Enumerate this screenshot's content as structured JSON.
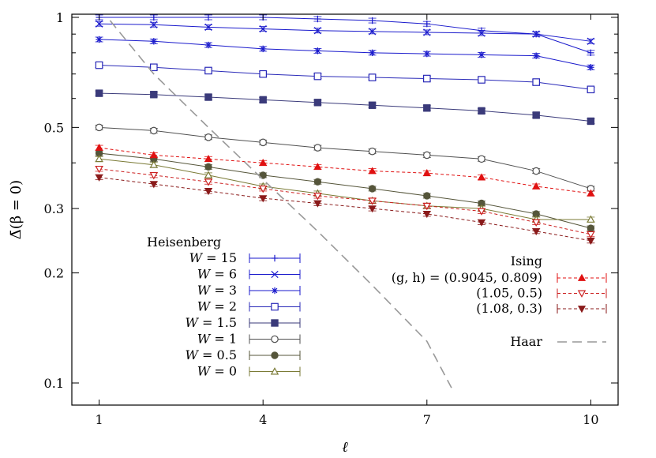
{
  "chart_data": {
    "type": "line",
    "title": "",
    "xlabel": "ℓ",
    "ylabel": "Δ̄(β = 0)",
    "x_scale": "linear",
    "y_scale": "log",
    "xlim": [
      0.5,
      10.5
    ],
    "ylim": [
      0.087,
      1.02
    ],
    "x_ticks": [
      1,
      4,
      7,
      10
    ],
    "y_ticks": [
      0.1,
      0.2,
      0.3,
      0.5,
      1
    ],
    "y_tick_labels": [
      "0.1",
      "0.2",
      "0.3",
      "0.5",
      "1"
    ],
    "grid": false,
    "legend_groups": [
      {
        "title": "Heisenberg",
        "placement": "bottom-left"
      },
      {
        "title": "Ising",
        "placement": "bottom-right"
      }
    ],
    "series": [
      {
        "name": "W = 15",
        "label_lhs": "W",
        "label_rhs": "15",
        "color": "#1a1acc",
        "marker": "plus",
        "dash": false,
        "x": [
          1,
          2,
          3,
          4,
          5,
          6,
          7,
          8,
          9,
          10
        ],
        "y": [
          1.0,
          1.0,
          1.0,
          1.0,
          0.99,
          0.98,
          0.96,
          0.92,
          0.9,
          0.8
        ]
      },
      {
        "name": "W = 6",
        "label_lhs": "W",
        "label_rhs": "6",
        "color": "#1a1acc",
        "marker": "cross",
        "dash": false,
        "x": [
          1,
          2,
          3,
          4,
          5,
          6,
          7,
          8,
          9,
          10
        ],
        "y": [
          0.96,
          0.955,
          0.94,
          0.93,
          0.92,
          0.915,
          0.91,
          0.905,
          0.9,
          0.86
        ]
      },
      {
        "name": "W = 3",
        "label_lhs": "W",
        "label_rhs": "3",
        "color": "#1a1acc",
        "marker": "star",
        "dash": false,
        "x": [
          1,
          2,
          3,
          4,
          5,
          6,
          7,
          8,
          9,
          10
        ],
        "y": [
          0.87,
          0.86,
          0.84,
          0.82,
          0.81,
          0.8,
          0.795,
          0.79,
          0.785,
          0.73
        ]
      },
      {
        "name": "W = 2",
        "label_lhs": "W",
        "label_rhs": "2",
        "color": "#2a2ab8",
        "marker": "square-open",
        "dash": false,
        "x": [
          1,
          2,
          3,
          4,
          5,
          6,
          7,
          8,
          9,
          10
        ],
        "y": [
          0.74,
          0.73,
          0.715,
          0.7,
          0.69,
          0.685,
          0.68,
          0.675,
          0.665,
          0.635
        ]
      },
      {
        "name": "W = 1.5",
        "label_lhs": "W",
        "label_rhs": "1.5",
        "color": "#3a3a7a",
        "marker": "square-filled",
        "dash": false,
        "x": [
          1,
          2,
          3,
          4,
          5,
          6,
          7,
          8,
          9,
          10
        ],
        "y": [
          0.62,
          0.615,
          0.605,
          0.595,
          0.585,
          0.575,
          0.565,
          0.555,
          0.54,
          0.52
        ]
      },
      {
        "name": "W = 1",
        "label_lhs": "W",
        "label_rhs": "1",
        "color": "#505050",
        "marker": "circle-open",
        "dash": false,
        "x": [
          1,
          2,
          3,
          4,
          5,
          6,
          7,
          8,
          9,
          10
        ],
        "y": [
          0.5,
          0.49,
          0.47,
          0.455,
          0.44,
          0.43,
          0.42,
          0.41,
          0.38,
          0.34
        ]
      },
      {
        "name": "W = 0.5",
        "label_lhs": "W",
        "label_rhs": "0.5",
        "color": "#55553a",
        "marker": "circle-filled",
        "dash": false,
        "x": [
          1,
          2,
          3,
          4,
          5,
          6,
          7,
          8,
          9,
          10
        ],
        "y": [
          0.425,
          0.41,
          0.39,
          0.37,
          0.355,
          0.34,
          0.325,
          0.31,
          0.29,
          0.265
        ]
      },
      {
        "name": "W = 0",
        "label_lhs": "W",
        "label_rhs": "0",
        "color": "#7a7a35",
        "marker": "triangle-open",
        "dash": false,
        "x": [
          1,
          2,
          3,
          4,
          5,
          6,
          7,
          8,
          9,
          10
        ],
        "y": [
          0.41,
          0.395,
          0.37,
          0.345,
          0.33,
          0.315,
          0.305,
          0.3,
          0.28,
          0.28
        ]
      },
      {
        "name": "(g, h) = (0.9045, 0.809)",
        "label_lhs": "(g, h) = ",
        "label_rhs": "(0.9045, 0.809)",
        "color": "#e01010",
        "marker": "triangle-filled",
        "dash": true,
        "x": [
          1,
          2,
          3,
          4,
          5,
          6,
          7,
          8,
          9,
          10
        ],
        "y": [
          0.44,
          0.42,
          0.41,
          0.4,
          0.39,
          0.38,
          0.375,
          0.365,
          0.345,
          0.33
        ]
      },
      {
        "name": "(1.05, 0.5)",
        "label_lhs": "",
        "label_rhs": "(1.05, 0.5)",
        "color": "#cc2020",
        "marker": "triangle-open-down",
        "dash": true,
        "x": [
          1,
          2,
          3,
          4,
          5,
          6,
          7,
          8,
          9,
          10
        ],
        "y": [
          0.385,
          0.37,
          0.355,
          0.34,
          0.325,
          0.315,
          0.305,
          0.295,
          0.275,
          0.255
        ]
      },
      {
        "name": "(1.08, 0.3)",
        "label_lhs": "",
        "label_rhs": "(1.08, 0.3)",
        "color": "#8a1a1a",
        "marker": "triangle-filled-down",
        "dash": true,
        "x": [
          1,
          2,
          3,
          4,
          5,
          6,
          7,
          8,
          9,
          10
        ],
        "y": [
          0.365,
          0.35,
          0.335,
          0.32,
          0.31,
          0.3,
          0.29,
          0.275,
          0.26,
          0.245
        ]
      },
      {
        "name": "Haar",
        "label_lhs": "",
        "label_rhs": "Haar",
        "color": "#999999",
        "marker": "none",
        "dash": true,
        "long_dash": true,
        "x": [
          1.2,
          2,
          3,
          4,
          5,
          6,
          7,
          7.45
        ],
        "y": [
          0.98,
          0.7,
          0.5,
          0.36,
          0.26,
          0.185,
          0.13,
          0.097
        ]
      }
    ]
  }
}
